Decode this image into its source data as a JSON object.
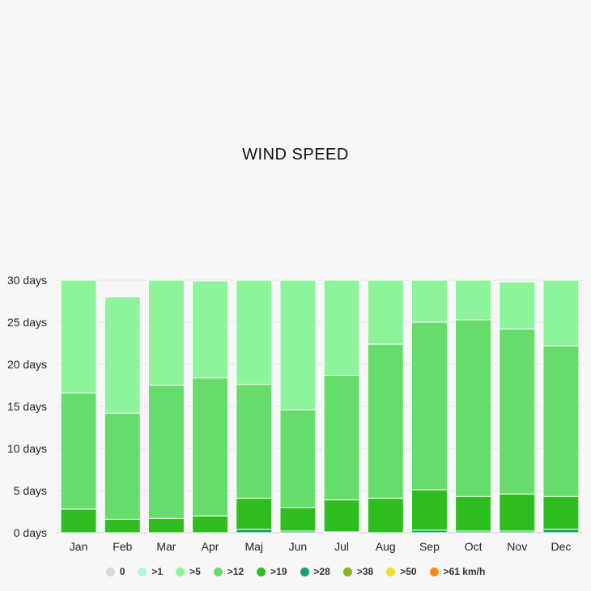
{
  "chart_data": {
    "type": "bar",
    "stacked": true,
    "title": "WIND SPEED",
    "ylim": [
      0,
      30
    ],
    "yticks": [
      "0 days",
      "5 days",
      "10 days",
      "15 days",
      "20 days",
      "25 days",
      "30 days"
    ],
    "ytick_values": [
      0,
      5,
      10,
      15,
      20,
      25,
      30
    ],
    "grid": true,
    "legend_position": "bottom",
    "categories": [
      "Jan",
      "Feb",
      "Mar",
      "Apr",
      "Maj",
      "Jun",
      "Jul",
      "Aug",
      "Sep",
      "Oct",
      "Nov",
      "Dec"
    ],
    "series": [
      {
        "name": "0",
        "color": "#dcd6d6",
        "values": [
          0,
          0,
          0,
          0,
          0,
          0,
          0,
          0,
          0,
          0,
          0,
          0
        ]
      },
      {
        "name": ">1",
        "color": "#b3f7d6",
        "values": [
          0,
          0,
          0,
          0,
          0,
          0,
          0,
          0,
          0,
          0,
          0,
          0
        ]
      },
      {
        "name": ">28",
        "color": "#1a9e6a",
        "values": [
          0,
          0,
          0,
          0,
          0.4,
          0.2,
          0.1,
          0,
          0.3,
          0.2,
          0.2,
          0.4
        ]
      },
      {
        "name": ">19",
        "color": "#2fbe1f",
        "values": [
          2.8,
          1.6,
          1.7,
          2,
          3.7,
          2.8,
          3.8,
          4.1,
          4.8,
          4.1,
          4.4,
          3.9
        ]
      },
      {
        "name": ">12",
        "color": "#66dc6a",
        "values": [
          13.8,
          12.6,
          15.8,
          16.4,
          13.5,
          11.6,
          14.8,
          18.3,
          19.9,
          21,
          19.6,
          17.9
        ]
      },
      {
        "name": ">5",
        "color": "#8df49b",
        "values": [
          13.4,
          13.8,
          12.5,
          11.5,
          12.4,
          15.4,
          11.3,
          7.6,
          5,
          4.7,
          5.6,
          7.8
        ]
      },
      {
        "name": ">38",
        "color": "#8ab31c",
        "values": [
          0,
          0,
          0,
          0,
          0,
          0,
          0,
          0,
          0,
          0,
          0,
          0
        ]
      },
      {
        "name": ">50",
        "color": "#e8e02a",
        "values": [
          0,
          0,
          0,
          0,
          0,
          0,
          0,
          0,
          0,
          0,
          0,
          0
        ]
      },
      {
        "name": ">61 km/h",
        "color": "#f08c16",
        "values": [
          0,
          0,
          0,
          0,
          0,
          0,
          0,
          0,
          0,
          0,
          0,
          0
        ]
      }
    ]
  },
  "legend": [
    {
      "label": "0",
      "color": "#dcd6d6"
    },
    {
      "label": ">1",
      "color": "#b3f7d6"
    },
    {
      "label": ">5",
      "color": "#8df49b"
    },
    {
      "label": ">12",
      "color": "#66dc6a"
    },
    {
      "label": ">19",
      "color": "#2fbe1f"
    },
    {
      "label": ">28",
      "color": "#1a9e6a"
    },
    {
      "label": ">38",
      "color": "#8ab31c"
    },
    {
      "label": ">50",
      "color": "#e8e02a"
    },
    {
      "label": ">61 km/h",
      "color": "#f08c16"
    }
  ]
}
